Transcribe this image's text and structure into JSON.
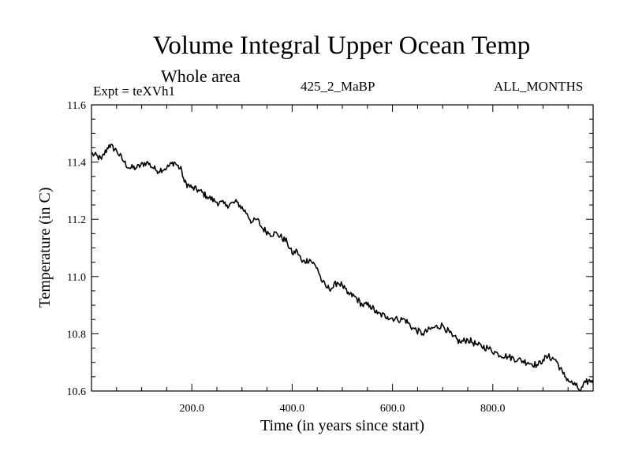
{
  "header": {
    "title": "Volume Integral Upper Ocean Temp",
    "subtitle": "Whole area",
    "experiment": "Expt = teXVh1",
    "run_name": "425_2_MaBP",
    "period": "ALL_MONTHS"
  },
  "chart_data": {
    "type": "line",
    "title": "Volume Integral Upper Ocean Temp",
    "xlabel": "Time (in years since start)",
    "ylabel": "Temperature (in C)",
    "xlim": [
      0,
      1000
    ],
    "ylim": [
      10.6,
      11.6
    ],
    "x_ticks": [
      200,
      400,
      600,
      800
    ],
    "x_tick_labels": [
      "200.0",
      "400.0",
      "600.0",
      "800.0"
    ],
    "y_ticks": [
      10.6,
      10.8,
      11.0,
      11.2,
      11.4,
      11.6
    ],
    "y_tick_labels": [
      "10.6",
      "10.8",
      "11.0",
      "11.2",
      "11.4",
      "11.6"
    ],
    "grid": false,
    "series": [
      {
        "name": "Upper Ocean Temp",
        "color": "#000000",
        "x": [
          0,
          20,
          35,
          50,
          65,
          75,
          90,
          110,
          130,
          150,
          165,
          180,
          185,
          200,
          215,
          230,
          250,
          270,
          290,
          310,
          320,
          330,
          340,
          355,
          370,
          390,
          400,
          410,
          420,
          435,
          450,
          460,
          470,
          480,
          490,
          500,
          510,
          525,
          540,
          555,
          570,
          590,
          610,
          625,
          640,
          660,
          680,
          700,
          720,
          735,
          750,
          770,
          790,
          810,
          830,
          850,
          870,
          890,
          900,
          910,
          925,
          940,
          955,
          965,
          975,
          985,
          1000
        ],
        "y": [
          11.43,
          11.41,
          11.46,
          11.44,
          11.4,
          11.38,
          11.38,
          11.4,
          11.37,
          11.38,
          11.4,
          11.37,
          11.33,
          11.31,
          11.3,
          11.28,
          11.26,
          11.25,
          11.26,
          11.22,
          11.19,
          11.2,
          11.17,
          11.15,
          11.15,
          11.12,
          11.08,
          11.09,
          11.05,
          11.06,
          11.03,
          10.98,
          10.96,
          10.96,
          10.98,
          10.97,
          10.94,
          10.93,
          10.9,
          10.9,
          10.87,
          10.86,
          10.85,
          10.85,
          10.82,
          10.8,
          10.82,
          10.83,
          10.79,
          10.77,
          10.78,
          10.76,
          10.75,
          10.73,
          10.72,
          10.71,
          10.7,
          10.69,
          10.71,
          10.72,
          10.71,
          10.66,
          10.63,
          10.62,
          10.6,
          10.63,
          10.64
        ]
      }
    ]
  }
}
